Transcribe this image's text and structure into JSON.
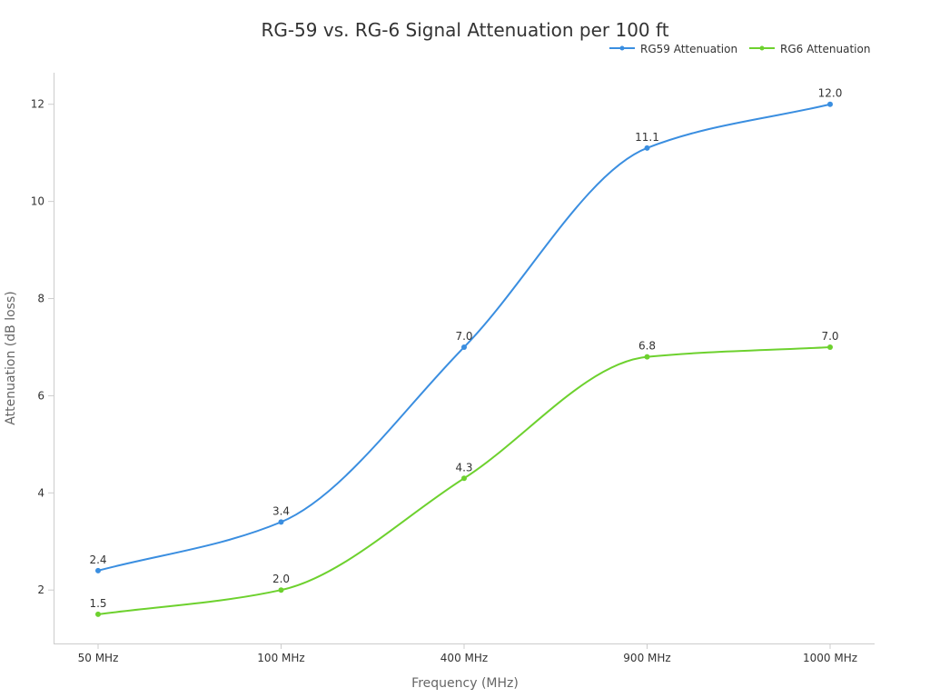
{
  "chart_data": {
    "type": "line",
    "title": "RG-59 vs. RG-6 Signal Attenuation per 100 ft",
    "xlabel": "Frequency (MHz)",
    "ylabel": "Attenuation (dB loss)",
    "categories": [
      "50 MHz",
      "100 MHz",
      "400 MHz",
      "900 MHz",
      "1000 MHz"
    ],
    "ylim": [
      0.9,
      12.65
    ],
    "yticks": [
      2,
      4,
      6,
      8,
      10,
      12
    ],
    "grid": false,
    "legend_position": "top-right",
    "smooth": true,
    "series": [
      {
        "name": "RG59 Attenuation",
        "color": "#3a8ee0",
        "values": [
          2.4,
          3.4,
          7.0,
          11.1,
          12.0
        ],
        "labels": [
          "2.4",
          "3.4",
          "7.0",
          "11.1",
          "12.0"
        ]
      },
      {
        "name": "RG6 Attenuation",
        "color": "#6dd12e",
        "values": [
          1.5,
          2.0,
          4.3,
          6.8,
          7.0
        ],
        "labels": [
          "1.5",
          "2.0",
          "4.3",
          "6.8",
          "7.0"
        ]
      }
    ]
  }
}
